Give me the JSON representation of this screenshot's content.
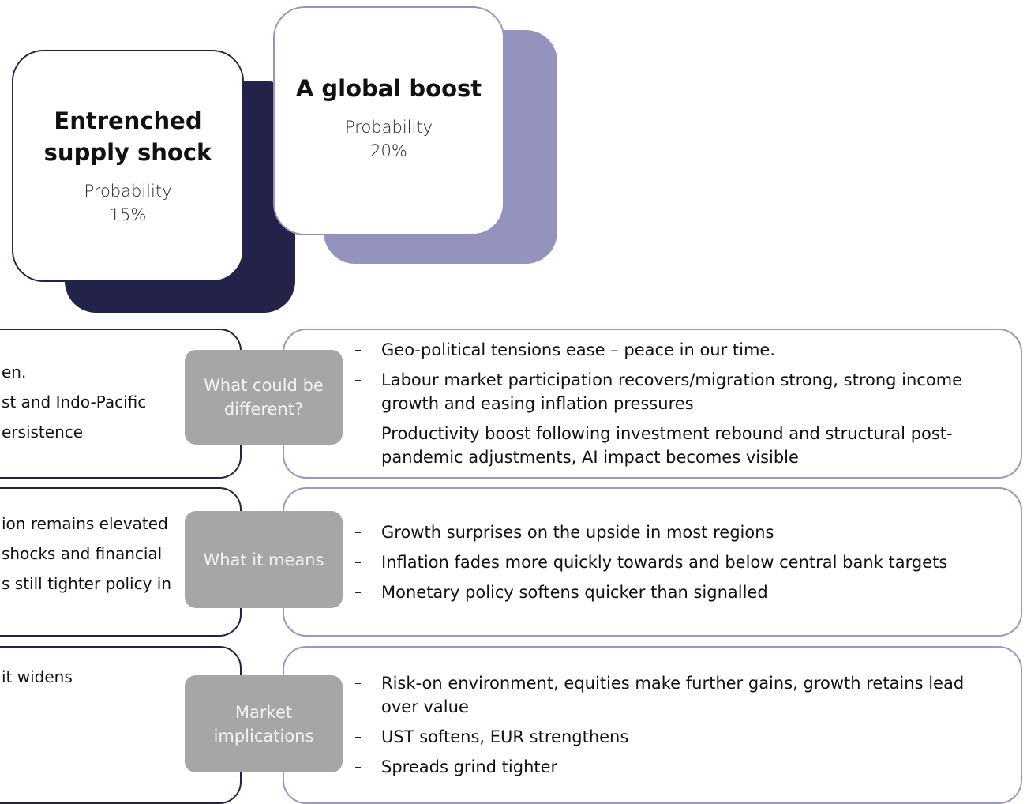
{
  "cards": [
    {
      "title": "Entrenched supply shock",
      "probability_label": "Probability",
      "probability": "15%"
    },
    {
      "title": "A global boost",
      "probability_label": "Probability",
      "probability": "20%"
    }
  ],
  "rows": [
    {
      "label": "What could be different?",
      "left_lines": [
        "en.",
        "st and Indo-Pacific",
        "ersistence"
      ],
      "right_items": [
        "Geo-political tensions ease – peace in our time.",
        "Labour market participation recovers/migration strong, strong income growth and easing inflation pressures",
        "Productivity boost following investment rebound and structural post-pandemic adjustments, AI impact becomes visible"
      ]
    },
    {
      "label": "What it means",
      "left_lines": [
        "ion remains elevated",
        "shocks and financial",
        "s still tighter policy in"
      ],
      "right_items": [
        "Growth surprises on the upside in most regions",
        "Inflation fades more quickly towards and below central bank targets",
        "Monetary policy softens quicker than signalled"
      ]
    },
    {
      "label": "Market implications",
      "left_lines": [
        "it widens"
      ],
      "right_items": [
        "Risk-on environment, equities make further gains, growth retains lead over value",
        "UST softens, EUR strengthens",
        "Spreads grind tighter"
      ]
    }
  ]
}
